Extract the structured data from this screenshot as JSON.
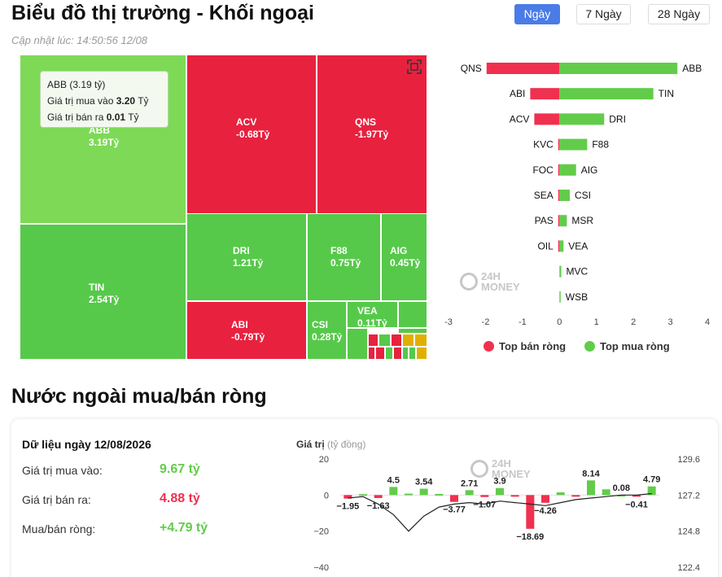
{
  "header": {
    "title": "Biểu đồ thị trường - Khối ngoại",
    "updated": "Cập nhật lúc: 14:50:56 12/08"
  },
  "range_buttons": [
    {
      "label": "Ngày",
      "active": true
    },
    {
      "label": "7 Ngày",
      "active": false
    },
    {
      "label": "28 Ngày",
      "active": false
    }
  ],
  "treemap": {
    "cells": [
      {
        "code": "ABB",
        "value": "3.19Tỷ",
        "color": "#7ed957"
      },
      {
        "code": "ACV",
        "value": "-0.68Tỷ",
        "color": "#e8213f"
      },
      {
        "code": "QNS",
        "value": "-1.97Tỷ",
        "color": "#e8213f"
      },
      {
        "code": "TIN",
        "value": "2.54Tỷ",
        "color": "#56c94a"
      },
      {
        "code": "DRI",
        "value": "1.21Tỷ",
        "color": "#56c94a"
      },
      {
        "code": "F88",
        "value": "0.75Tỷ",
        "color": "#56c94a"
      },
      {
        "code": "AIG",
        "value": "0.45Tỷ",
        "color": "#56c94a"
      },
      {
        "code": "ABI",
        "value": "-0.79Tỷ",
        "color": "#e8213f"
      },
      {
        "code": "CSI",
        "value": "0.28Tỷ",
        "color": "#56c94a"
      },
      {
        "code": "VEA",
        "value": "0.11Tỷ",
        "color": "#56c94a"
      }
    ],
    "tooltip": {
      "title": "ABB (3.19 tỷ)",
      "buy_label": "Giá trị mua vào",
      "buy_value": "3.20",
      "sell_label": "Giá trị bán ra",
      "sell_value": "0.01",
      "unit": "Tỷ"
    }
  },
  "chart_data": [
    {
      "type": "bar",
      "orientation": "horizontal",
      "xlim": [
        -3,
        4
      ],
      "x_ticks": [
        "-3",
        "-2",
        "-1",
        "0",
        "1",
        "2",
        "3",
        "4"
      ],
      "sell_series": {
        "name": "Top bán ròng",
        "color": "#f0304f",
        "categories": [
          "QNS",
          "ABI",
          "ACV",
          "KVC",
          "FOC",
          "SEA",
          "PAS",
          "OIL",
          "",
          ""
        ],
        "values": [
          -1.97,
          -0.79,
          -0.68,
          -0.01,
          -0.01,
          -0.01,
          -0.01,
          -0.01,
          0,
          0
        ]
      },
      "buy_series": {
        "name": "Top mua ròng",
        "color": "#62cc4a",
        "categories": [
          "ABB",
          "TIN",
          "DRI",
          "F88",
          "AIG",
          "CSI",
          "MSR",
          "VEA",
          "MVC",
          "WSB"
        ],
        "values": [
          3.19,
          2.54,
          1.21,
          0.75,
          0.45,
          0.28,
          0.2,
          0.11,
          0.05,
          0.02
        ]
      }
    },
    {
      "type": "bar+line",
      "ylabel": "Giá trị",
      "ylabel_unit": "(tỷ đồng)",
      "ylim": [
        -40,
        20
      ],
      "y_ticks": [
        "20",
        "0",
        "−20",
        "−40"
      ],
      "y2lim": [
        122.4,
        129.6
      ],
      "y2_ticks": [
        "129.6",
        "127.2",
        "124.8",
        "122.4"
      ],
      "bars": [
        -1.95,
        0.5,
        -1.63,
        4.5,
        0.8,
        3.54,
        0.6,
        -3.77,
        2.71,
        -1.07,
        3.9,
        -0.5,
        -18.69,
        -4.26,
        1.5,
        -0.8,
        8.14,
        3.2,
        0.08,
        -0.41,
        4.79
      ],
      "bar_labels": [
        "−1.95",
        "",
        "−1.63",
        "4.5",
        "",
        "3.54",
        "",
        "−3.77",
        "2.71",
        "−1.07",
        "3.9",
        "",
        "−18.69",
        "−4.26",
        "",
        "",
        "8.14",
        "",
        "0.08",
        "−0.41",
        "4.79"
      ],
      "line": [
        127.0,
        127.1,
        126.6,
        125.9,
        124.8,
        125.8,
        126.4,
        126.6,
        126.7,
        126.6,
        126.8,
        126.7,
        126.6,
        126.5,
        126.7,
        126.9,
        127.0,
        127.1,
        127.2,
        127.2,
        127.3
      ],
      "colors": {
        "up": "#62cc4a",
        "down": "#f0304f",
        "line": "#222222"
      }
    }
  ],
  "legend": {
    "sell": "Top bán ròng",
    "buy": "Top mua ròng"
  },
  "net_section": {
    "title": "Nước ngoài mua/bán ròng",
    "date_label": "Dữ liệu ngày 12/08/2026",
    "stats": [
      {
        "label": "Giá trị mua vào:",
        "value": "9.67 tỷ",
        "color": "#62cc4a"
      },
      {
        "label": "Giá trị bán ra:",
        "value": "4.88 tỷ",
        "color": "#f0304f"
      },
      {
        "label": "Mua/bán ròng:",
        "value": "+4.79 tỷ",
        "color": "#62cc4a"
      }
    ]
  },
  "watermark": {
    "line1": "24H",
    "line2": "MONEY"
  }
}
